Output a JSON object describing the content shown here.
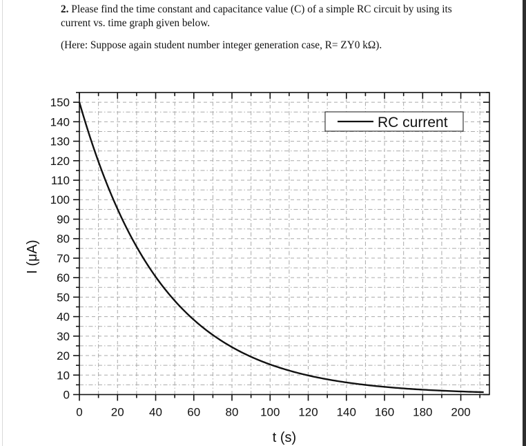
{
  "question": {
    "number": "2.",
    "text": " Please find the time constant and capacitance value (C) of a simple RC circuit by using its current vs. time graph given below.",
    "note": "(Here: Suppose again student number integer generation case, R= ZY0 kΩ)."
  },
  "colors": {
    "curve": "#111111",
    "axis": "#111111",
    "grid": "#aaaaaa",
    "right_bar": "#2e2e2e"
  },
  "chart_data": {
    "type": "line",
    "title": "",
    "xlabel": "t (s)",
    "ylabel": "I (μA)",
    "xlim": [
      0,
      215
    ],
    "ylim": [
      0,
      155
    ],
    "xticks_major": [
      0,
      20,
      40,
      60,
      80,
      100,
      120,
      140,
      160,
      180,
      200
    ],
    "xticks_minor_step": 10,
    "yticks_major": [
      0,
      10,
      20,
      30,
      40,
      50,
      60,
      70,
      80,
      90,
      100,
      110,
      120,
      130,
      140,
      150
    ],
    "yticks_minor_step": 5,
    "grid": true,
    "legend": {
      "position": "upper right",
      "entries": [
        "RC current"
      ]
    },
    "series": [
      {
        "name": "RC current",
        "x": [
          0,
          10,
          20,
          30,
          40,
          50,
          60,
          70,
          80,
          90,
          100,
          110,
          120,
          130,
          140,
          150,
          160,
          170,
          180,
          190,
          200,
          210,
          212
        ],
        "values": [
          150,
          119.5,
          95.2,
          75.8,
          60.4,
          48.1,
          38.3,
          30.5,
          24.3,
          19.4,
          15.4,
          12.3,
          9.8,
          7.8,
          6.2,
          5.0,
          4.0,
          3.1,
          2.5,
          2.0,
          1.6,
          1.3,
          1.2
        ]
      }
    ],
    "model_hint": {
      "I0_uA": 150,
      "tau_s": 44
    }
  }
}
